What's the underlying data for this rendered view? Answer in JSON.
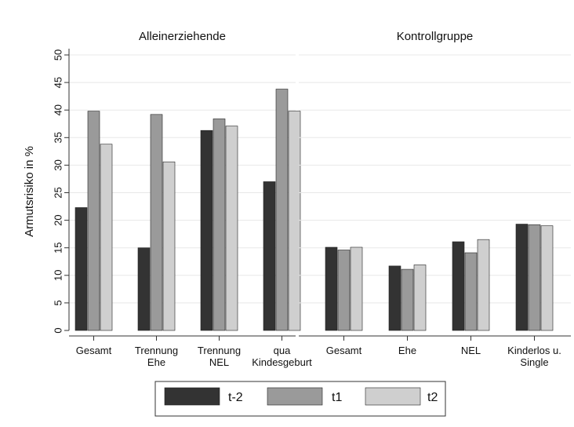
{
  "chart_data": {
    "type": "bar",
    "ylabel": "Armutsrisiko in %",
    "ylim": [
      0,
      50
    ],
    "yticks": [
      0,
      5,
      10,
      15,
      20,
      25,
      30,
      35,
      40,
      45,
      50
    ],
    "grid": true,
    "legend_position": "bottom",
    "series": [
      {
        "name": "t-2",
        "color": "#333333"
      },
      {
        "name": "t1",
        "color": "#9a9a9a"
      },
      {
        "name": "t2",
        "color": "#cfcfcf"
      }
    ],
    "panels": [
      {
        "title": "Alleinerziehende",
        "categories": [
          {
            "label": [
              "Gesamt"
            ],
            "values": [
              22.3,
              39.8,
              33.8
            ]
          },
          {
            "label": [
              "Trennung",
              "Ehe"
            ],
            "values": [
              15.0,
              39.2,
              30.6
            ]
          },
          {
            "label": [
              "Trennung",
              "NEL"
            ],
            "values": [
              36.3,
              38.4,
              37.1
            ]
          },
          {
            "label": [
              "qua",
              "Kindesgeburt"
            ],
            "values": [
              27.0,
              43.8,
              39.8
            ]
          }
        ]
      },
      {
        "title": "Kontrollgruppe",
        "categories": [
          {
            "label": [
              "Gesamt"
            ],
            "values": [
              15.1,
              14.6,
              15.1
            ]
          },
          {
            "label": [
              "Ehe"
            ],
            "values": [
              11.7,
              11.1,
              11.9
            ]
          },
          {
            "label": [
              "NEL"
            ],
            "values": [
              16.1,
              14.1,
              16.5
            ]
          },
          {
            "label": [
              "Kinderlos u.",
              "Single"
            ],
            "values": [
              19.3,
              19.2,
              19.0
            ]
          }
        ]
      }
    ]
  }
}
